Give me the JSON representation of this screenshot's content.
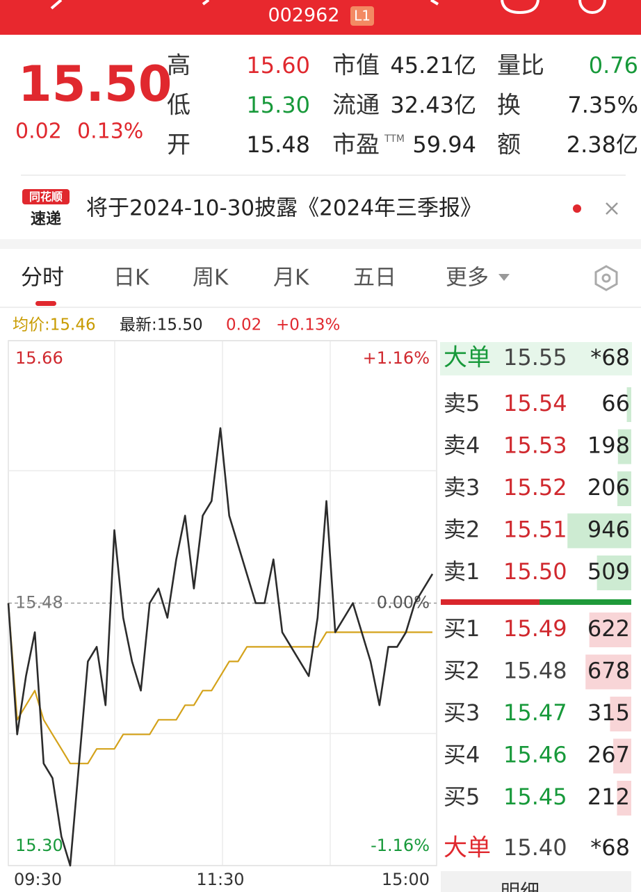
{
  "header": {
    "code": "002962",
    "badge": "L1"
  },
  "quote": {
    "price": "15.50",
    "change": "0.02",
    "change_pct": "0.13%",
    "stats": [
      {
        "label": "高",
        "value": "15.60"
      },
      {
        "label": "低",
        "value": "15.30"
      },
      {
        "label": "开",
        "value": "15.48"
      },
      {
        "label": "市值",
        "value": "45.21亿"
      },
      {
        "label": "流通",
        "value": "32.43亿"
      },
      {
        "label": "市盈",
        "sup": "TTM",
        "value": "59.94"
      },
      {
        "label": "量比",
        "value": "0.76"
      },
      {
        "label": "换",
        "value": "7.35%"
      },
      {
        "label": "额",
        "value": "2.38亿"
      }
    ]
  },
  "notice": {
    "logo_top": "同花顺",
    "logo_bottom": "速递",
    "text": "将于2024-10-30披露《2024年三季报》"
  },
  "tabs": [
    "分时",
    "日K",
    "周K",
    "月K",
    "五日",
    "更多"
  ],
  "info_bar": {
    "avg": "均价:15.46",
    "latest": "最新:15.50",
    "change": "0.02",
    "change_pct": "+0.13%"
  },
  "chart_data": {
    "type": "line",
    "categories": [
      "09:30",
      null,
      null,
      null,
      null,
      null,
      null,
      null,
      null,
      null,
      null,
      null,
      null,
      null,
      null,
      null,
      null,
      null,
      null,
      null,
      null,
      null,
      null,
      null,
      "11:30",
      null,
      null,
      null,
      null,
      null,
      null,
      null,
      null,
      null,
      null,
      null,
      null,
      null,
      null,
      null,
      null,
      null,
      null,
      null,
      null,
      null,
      null,
      null,
      "15:00"
    ],
    "series": [
      {
        "color": "#2b2b2b",
        "values": [
          15.48,
          15.39,
          15.43,
          15.46,
          15.37,
          15.36,
          15.32,
          15.3,
          15.37,
          15.44,
          15.45,
          15.41,
          15.53,
          15.47,
          15.44,
          15.42,
          15.48,
          15.49,
          15.47,
          15.51,
          15.54,
          15.49,
          15.54,
          15.55,
          15.6,
          15.54,
          15.52,
          15.5,
          15.48,
          15.48,
          15.51,
          15.46,
          15.45,
          15.44,
          15.43,
          15.47,
          15.55,
          15.46,
          15.47,
          15.48,
          15.46,
          15.44,
          15.41,
          15.45,
          15.45,
          15.46,
          15.48,
          15.49,
          15.5
        ]
      },
      {
        "color": "#d4a21a",
        "values": [
          15.48,
          15.4,
          15.41,
          15.42,
          15.4,
          15.39,
          15.38,
          15.37,
          15.37,
          15.37,
          15.38,
          15.38,
          15.38,
          15.39,
          15.39,
          15.39,
          15.39,
          15.4,
          15.4,
          15.4,
          15.41,
          15.41,
          15.42,
          15.42,
          15.43,
          15.44,
          15.44,
          15.45,
          15.45,
          15.45,
          15.45,
          15.45,
          15.45,
          15.45,
          15.45,
          15.45,
          15.46,
          15.46,
          15.46,
          15.46,
          15.46,
          15.46,
          15.46,
          15.46,
          15.46,
          15.46,
          15.46,
          15.46,
          15.46
        ]
      }
    ],
    "ylim": [
      15.3,
      15.66
    ],
    "yticks": [
      15.66,
      15.48,
      {
        "value": 15.3,
        "label": "15.30"
      }
    ],
    "y2lim": [
      -1.16,
      1.16
    ],
    "y2ticks": [
      {
        "value": 1.16,
        "label": "+1.16%"
      },
      {
        "value": 0,
        "label": "0.00%"
      },
      {
        "value": -1.16,
        "label": "-1.16%"
      }
    ]
  },
  "order_book": {
    "big_sell": {
      "label": "大单",
      "price": "15.55",
      "volume": "*68"
    },
    "asks": [
      {
        "label": "卖5",
        "price": "15.54",
        "volume": 66
      },
      {
        "label": "卖4",
        "price": "15.53",
        "volume": 198
      },
      {
        "label": "卖3",
        "price": "15.52",
        "volume": 206
      },
      {
        "label": "卖2",
        "price": "15.51",
        "volume": 946
      },
      {
        "label": "卖1",
        "price": "15.50",
        "volume": 509
      }
    ],
    "bids": [
      {
        "label": "买1",
        "price": "15.49",
        "volume": 622
      },
      {
        "label": "买2",
        "price": "15.48",
        "volume": 678
      },
      {
        "label": "买3",
        "price": "15.47",
        "volume": 315
      },
      {
        "label": "买4",
        "price": "15.46",
        "volume": 267
      },
      {
        "label": "买5",
        "price": "15.45",
        "volume": 212
      }
    ],
    "big_buy": {
      "label": "大单",
      "price": "15.40",
      "volume": "*68"
    },
    "detail_tab": "明细"
  }
}
